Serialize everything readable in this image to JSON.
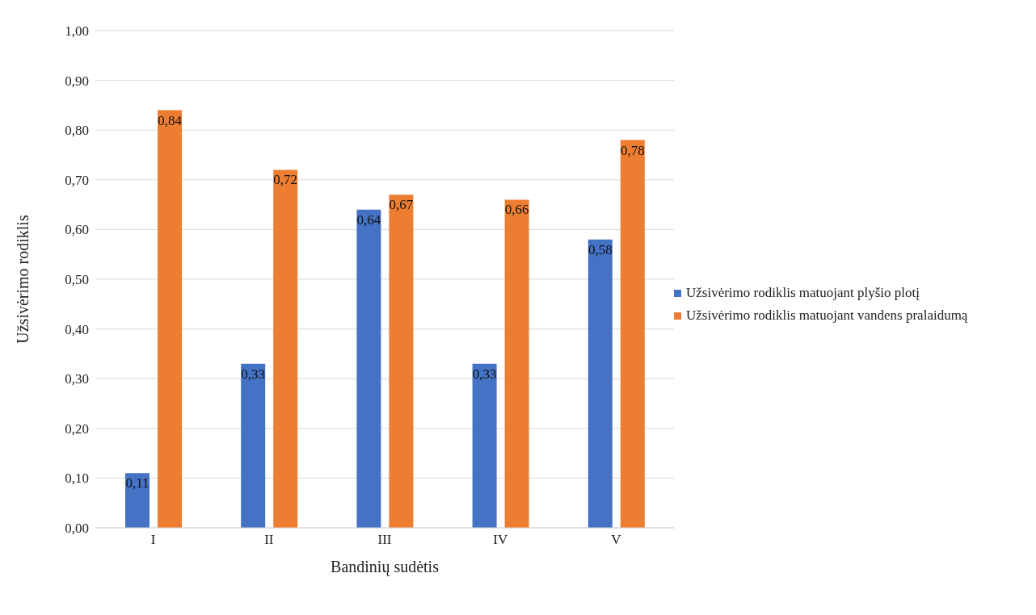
{
  "chart_data": {
    "type": "bar",
    "xlabel": "Bandinių sudėtis",
    "ylabel": "Užsivėrimo rodiklis",
    "categories": [
      "I",
      "II",
      "III",
      "IV",
      "V"
    ],
    "series": [
      {
        "name": "Užsivėrimo rodiklis matuojant plyšio plotį",
        "color": "#4472c4",
        "values": [
          0.11,
          0.33,
          0.64,
          0.33,
          0.58
        ],
        "value_labels": [
          "0,11",
          "0,33",
          "0,64",
          "0,33",
          "0,58"
        ]
      },
      {
        "name": "Užsivėrimo rodiklis matuojant vandens pralaidumą",
        "color": "#ed7d31",
        "values": [
          0.84,
          0.72,
          0.67,
          0.66,
          0.78
        ],
        "value_labels": [
          "0,84",
          "0,72",
          "0,67",
          "0,66",
          "0,78"
        ]
      }
    ],
    "ylim": [
      0,
      1
    ],
    "yticks": [
      {
        "value": 0,
        "label": "0,00"
      },
      {
        "value": 0.1,
        "label": "0,10"
      },
      {
        "value": 0.2,
        "label": "0,20"
      },
      {
        "value": 0.3,
        "label": "0,30"
      },
      {
        "value": 0.4,
        "label": "0,40"
      },
      {
        "value": 0.5,
        "label": "0,50"
      },
      {
        "value": 0.6,
        "label": "0,60"
      },
      {
        "value": 0.7,
        "label": "0,70"
      },
      {
        "value": 0.8,
        "label": "0,80"
      },
      {
        "value": 0.9,
        "label": "0,90"
      },
      {
        "value": 1,
        "label": "1,00"
      }
    ],
    "grid": "y",
    "legend": "right"
  }
}
